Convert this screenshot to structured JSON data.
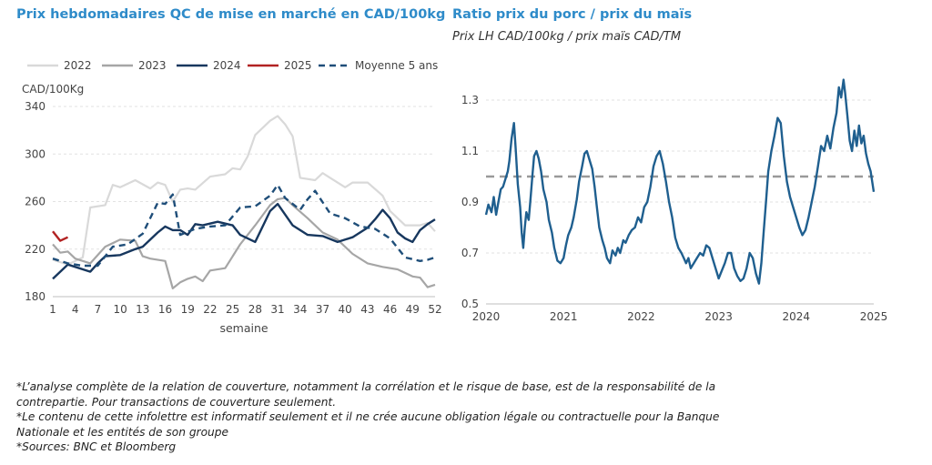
{
  "left_chart": {
    "title": "Prix hebdomadaires QC de mise en marché en CAD/100kg",
    "ylabel": "CAD/100Kg",
    "xlabel": "semaine",
    "legend": [
      "2022",
      "2023",
      "2024",
      "2025",
      "Moyenne 5 ans"
    ]
  },
  "right_chart": {
    "title": "Ratio prix du porc / prix du maïs",
    "subtitle": "Prix LH CAD/100kg / prix maïs CAD/TM"
  },
  "notes": [
    "*L’analyse complète de la relation de couverture, notamment la corrélation et le risque de base, est de la responsabilité de la",
    "contrepartie. Pour transactions de couverture seulement.",
    "*Le contenu de cette infolettre est informatif seulement et il ne crée aucune obligation légale ou contractuelle pour la Banque",
    "Nationale et les entités de son groupe",
    "*Sources: BNC et Bloomberg"
  ],
  "colors": {
    "title": "#2e8bc9",
    "s2022": "#d9d9d9",
    "s2023": "#a6a6a6",
    "s2024": "#17375e",
    "s2025": "#b22222",
    "avg": "#1f4e79",
    "ratio": "#1f5f8f",
    "ref": "#999999"
  },
  "chart_data": [
    {
      "type": "line",
      "title": "Prix hebdomadaires QC de mise en marché en CAD/100kg",
      "xlabel": "semaine",
      "ylabel": "CAD/100Kg",
      "xlim": [
        1,
        52
      ],
      "ylim": [
        180,
        340
      ],
      "xticks": [
        1,
        4,
        7,
        10,
        13,
        16,
        19,
        22,
        25,
        28,
        31,
        34,
        37,
        40,
        43,
        46,
        49,
        52
      ],
      "yticks": [
        180,
        220,
        260,
        300,
        340
      ],
      "grid": true,
      "legend": "top",
      "series": [
        {
          "name": "2022",
          "x": [
            1,
            3,
            5,
            6,
            8,
            9,
            10,
            12,
            14,
            15,
            16,
            17,
            18,
            19,
            20,
            22,
            24,
            25,
            26,
            27,
            28,
            30,
            31,
            32,
            33,
            34,
            36,
            37,
            38,
            40,
            41,
            43,
            45,
            46,
            48,
            50,
            51,
            52
          ],
          "values": [
            211,
            207,
            213,
            255,
            257,
            274,
            272,
            278,
            271,
            276,
            274,
            260,
            270,
            271,
            270,
            281,
            283,
            288,
            287,
            298,
            316,
            328,
            332,
            325,
            315,
            280,
            278,
            284,
            280,
            272,
            276,
            276,
            265,
            252,
            240,
            240,
            242,
            235
          ]
        },
        {
          "name": "2023",
          "x": [
            1,
            2,
            3,
            4,
            6,
            8,
            10,
            12,
            13,
            14,
            16,
            17,
            18,
            19,
            20,
            21,
            22,
            24,
            26,
            28,
            30,
            31,
            32,
            33,
            35,
            37,
            39,
            41,
            43,
            45,
            47,
            49,
            50,
            51,
            52
          ],
          "values": [
            224,
            217,
            218,
            212,
            208,
            222,
            228,
            227,
            214,
            212,
            210,
            187,
            192,
            195,
            197,
            193,
            202,
            204,
            224,
            240,
            257,
            262,
            263,
            257,
            246,
            234,
            228,
            216,
            208,
            205,
            203,
            197,
            196,
            188,
            190
          ]
        },
        {
          "name": "2024",
          "x": [
            1,
            3,
            4,
            6,
            7,
            8,
            10,
            12,
            13,
            15,
            16,
            17,
            18,
            19,
            20,
            21,
            23,
            25,
            26,
            28,
            30,
            31,
            33,
            35,
            37,
            39,
            41,
            43,
            44,
            45,
            46,
            47,
            48,
            49,
            50,
            51,
            52
          ],
          "values": [
            195,
            207,
            205,
            201,
            208,
            214,
            215,
            220,
            222,
            234,
            239,
            236,
            236,
            232,
            241,
            240,
            243,
            240,
            232,
            226,
            252,
            258,
            240,
            232,
            231,
            226,
            230,
            238,
            245,
            253,
            246,
            234,
            229,
            226,
            236,
            241,
            245
          ]
        },
        {
          "name": "2025",
          "x": [
            1,
            2,
            3
          ],
          "values": [
            235,
            227,
            230
          ]
        },
        {
          "name": "Moyenne 5 ans",
          "x": [
            1,
            3,
            5,
            7,
            9,
            11,
            13,
            15,
            16,
            17,
            18,
            20,
            22,
            24,
            26,
            28,
            30,
            31,
            32,
            34,
            35,
            36,
            38,
            40,
            42,
            44,
            46,
            48,
            50,
            51,
            52
          ],
          "values": [
            212,
            208,
            206,
            206,
            222,
            224,
            233,
            259,
            258,
            266,
            232,
            237,
            239,
            240,
            255,
            256,
            265,
            274,
            263,
            253,
            262,
            269,
            250,
            246,
            239,
            237,
            229,
            213,
            210,
            211,
            213
          ]
        }
      ]
    },
    {
      "type": "line",
      "title": "Ratio prix du porc / prix du maïs",
      "subtitle": "Prix LH CAD/100kg / prix maïs CAD/TM",
      "xlim": [
        2020,
        2025
      ],
      "ylim": [
        0.5,
        1.4
      ],
      "xticks": [
        2020,
        2021,
        2022,
        2023,
        2024,
        2025
      ],
      "yticks": [
        0.5,
        0.7,
        0.9,
        1.1,
        1.3
      ],
      "grid": true,
      "reference_line": 1.0,
      "series": [
        {
          "x": [
            2020.0,
            2020.03,
            2020.07,
            2020.1,
            2020.13,
            2020.16,
            2020.19,
            2020.22,
            2020.25,
            2020.28,
            2020.3,
            2020.33,
            2020.36,
            2020.38,
            2020.41,
            2020.44,
            2020.46,
            2020.48,
            2020.5,
            2020.52,
            2020.55,
            2020.57,
            2020.6,
            2020.62,
            2020.65,
            2020.68,
            2020.71,
            2020.74,
            2020.78,
            2020.81,
            2020.85,
            2020.88,
            2020.92,
            2020.96,
            2021.0,
            2021.03,
            2021.06,
            2021.1,
            2021.13,
            2021.17,
            2021.2,
            2021.24,
            2021.27,
            2021.3,
            2021.33,
            2021.37,
            2021.4,
            2021.43,
            2021.46,
            2021.5,
            2021.53,
            2021.56,
            2021.6,
            2021.63,
            2021.67,
            2021.7,
            2021.73,
            2021.77,
            2021.8,
            2021.84,
            2021.88,
            2021.92,
            2021.96,
            2022.0,
            2022.04,
            2022.08,
            2022.12,
            2022.16,
            2022.2,
            2022.24,
            2022.28,
            2022.32,
            2022.36,
            2022.4,
            2022.44,
            2022.48,
            2022.52,
            2022.55,
            2022.58,
            2022.61,
            2022.64,
            2022.68,
            2022.72,
            2022.76,
            2022.8,
            2022.84,
            2022.88,
            2022.92,
            2022.96,
            2023.0,
            2023.04,
            2023.08,
            2023.12,
            2023.16,
            2023.2,
            2023.24,
            2023.28,
            2023.32,
            2023.36,
            2023.4,
            2023.44,
            2023.48,
            2023.52,
            2023.55,
            2023.58,
            2023.61,
            2023.64,
            2023.68,
            2023.72,
            2023.76,
            2023.8,
            2023.84,
            2023.88,
            2023.92,
            2023.96,
            2024.0,
            2024.04,
            2024.08,
            2024.12,
            2024.16,
            2024.2,
            2024.24,
            2024.28,
            2024.32,
            2024.36,
            2024.4,
            2024.44,
            2024.48,
            2024.52,
            2024.55,
            2024.58,
            2024.61,
            2024.63,
            2024.66,
            2024.69,
            2024.72,
            2024.75,
            2024.78,
            2024.81,
            2024.84,
            2024.87,
            2024.9,
            2024.93,
            2024.96,
            2025.0
          ],
          "values": [
            0.85,
            0.89,
            0.86,
            0.92,
            0.85,
            0.9,
            0.95,
            0.96,
            0.99,
            1.02,
            1.06,
            1.15,
            1.21,
            1.12,
            0.97,
            0.88,
            0.78,
            0.72,
            0.8,
            0.86,
            0.83,
            0.9,
            1.01,
            1.08,
            1.1,
            1.07,
            1.02,
            0.95,
            0.9,
            0.83,
            0.78,
            0.72,
            0.67,
            0.66,
            0.68,
            0.73,
            0.77,
            0.8,
            0.84,
            0.91,
            0.98,
            1.04,
            1.09,
            1.1,
            1.07,
            1.03,
            0.96,
            0.88,
            0.8,
            0.75,
            0.72,
            0.68,
            0.66,
            0.71,
            0.69,
            0.72,
            0.7,
            0.75,
            0.74,
            0.77,
            0.79,
            0.8,
            0.84,
            0.82,
            0.88,
            0.9,
            0.96,
            1.04,
            1.08,
            1.1,
            1.05,
            0.98,
            0.9,
            0.84,
            0.76,
            0.72,
            0.7,
            0.68,
            0.66,
            0.68,
            0.64,
            0.66,
            0.68,
            0.7,
            0.69,
            0.73,
            0.72,
            0.68,
            0.64,
            0.6,
            0.63,
            0.66,
            0.7,
            0.7,
            0.64,
            0.61,
            0.59,
            0.6,
            0.64,
            0.7,
            0.68,
            0.62,
            0.58,
            0.66,
            0.78,
            0.9,
            1.02,
            1.1,
            1.16,
            1.23,
            1.21,
            1.08,
            0.98,
            0.92,
            0.88,
            0.84,
            0.8,
            0.77,
            0.79,
            0.84,
            0.9,
            0.96,
            1.04,
            1.12,
            1.1,
            1.16,
            1.11,
            1.19,
            1.25,
            1.35,
            1.31,
            1.38,
            1.33,
            1.24,
            1.14,
            1.1,
            1.18,
            1.12,
            1.2,
            1.13,
            1.16,
            1.09,
            1.05,
            1.02,
            0.94
          ]
        }
      ]
    }
  ]
}
